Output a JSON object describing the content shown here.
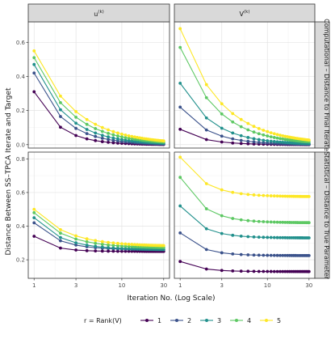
{
  "chart_data": {
    "type": "line",
    "xlabel": "Iteration No. (Log Scale)",
    "ylabel": "Distance Between SS–TPCA Iterate and Target",
    "x_scale": "log",
    "x": [
      1,
      2,
      3,
      4,
      5,
      6,
      7,
      8,
      9,
      10,
      11,
      12,
      13,
      14,
      15,
      16,
      17,
      18,
      19,
      20,
      21,
      22,
      23,
      24,
      25,
      26,
      27,
      28,
      29,
      30
    ],
    "x_ticks": [
      "1",
      "3",
      "10",
      "30"
    ],
    "legend": {
      "title": "r = Rank(V)",
      "position": "bottom",
      "entries": [
        "1",
        "2",
        "3",
        "4",
        "5"
      ],
      "colors": [
        "#440154",
        "#3b528b",
        "#21908c",
        "#5dc863",
        "#fde725"
      ]
    },
    "columns": [
      {
        "base": "u",
        "sup": "(k)"
      },
      {
        "base": "V",
        "sup": "(k)"
      }
    ],
    "rows": [
      {
        "label": "Computational – Distance to Final Iterate",
        "ylim": [
          -0.02,
          0.72
        ],
        "y_ticks": [
          0.0,
          0.2,
          0.4,
          0.6
        ]
      },
      {
        "label": "Statistical – Distance to True Parameter",
        "ylim": [
          0.09,
          0.84
        ],
        "y_ticks": [
          0.2,
          0.4,
          0.6,
          0.8
        ]
      }
    ],
    "panels": [
      {
        "row": 0,
        "col": 0,
        "series": [
          {
            "name": "1",
            "start": 0.31,
            "end": 0.0,
            "rate": 1.6
          },
          {
            "name": "2",
            "start": 0.42,
            "end": 0.0,
            "rate": 1.35
          },
          {
            "name": "3",
            "start": 0.47,
            "end": 0.0,
            "rate": 1.2
          },
          {
            "name": "4",
            "start": 0.51,
            "end": 0.0,
            "rate": 1.05
          },
          {
            "name": "5",
            "start": 0.55,
            "end": 0.0,
            "rate": 0.95
          }
        ]
      },
      {
        "row": 0,
        "col": 1,
        "series": [
          {
            "name": "1",
            "start": 0.09,
            "end": 0.0,
            "rate": 1.6
          },
          {
            "name": "2",
            "start": 0.22,
            "end": 0.0,
            "rate": 1.35
          },
          {
            "name": "3",
            "start": 0.36,
            "end": 0.0,
            "rate": 1.2
          },
          {
            "name": "4",
            "start": 0.57,
            "end": 0.0,
            "rate": 1.05
          },
          {
            "name": "5",
            "start": 0.68,
            "end": 0.0,
            "rate": 0.95
          }
        ]
      },
      {
        "row": 1,
        "col": 0,
        "series": [
          {
            "name": "1",
            "start": 0.34,
            "end": 0.25,
            "rate": 2.2
          },
          {
            "name": "2",
            "start": 0.42,
            "end": 0.26,
            "rate": 1.6
          },
          {
            "name": "3",
            "start": 0.45,
            "end": 0.26,
            "rate": 1.4
          },
          {
            "name": "4",
            "start": 0.48,
            "end": 0.27,
            "rate": 1.25
          },
          {
            "name": "5",
            "start": 0.5,
            "end": 0.28,
            "rate": 1.15
          }
        ]
      },
      {
        "row": 1,
        "col": 1,
        "series": [
          {
            "name": "1",
            "start": 0.19,
            "end": 0.13,
            "rate": 2.0
          },
          {
            "name": "2",
            "start": 0.36,
            "end": 0.225,
            "rate": 1.9
          },
          {
            "name": "3",
            "start": 0.52,
            "end": 0.33,
            "rate": 1.8
          },
          {
            "name": "4",
            "start": 0.69,
            "end": 0.42,
            "rate": 1.7
          },
          {
            "name": "5",
            "start": 0.81,
            "end": 0.575,
            "rate": 1.6
          }
        ]
      }
    ]
  }
}
